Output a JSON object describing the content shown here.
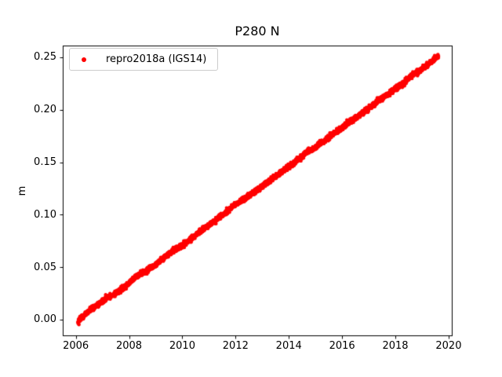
{
  "figure": {
    "background_color": "#ffffff"
  },
  "chart_data": {
    "type": "scatter",
    "title": "P280 N",
    "xlabel": "",
    "ylabel": "m",
    "grid": false,
    "axes": {
      "xlim": [
        2005.51,
        2020.12
      ],
      "ylim": [
        -0.01497,
        0.2612
      ],
      "xtick_values": [
        2006,
        2008,
        2010,
        2012,
        2014,
        2016,
        2018,
        2020
      ],
      "xtick_labels": [
        "2006",
        "2008",
        "2010",
        "2012",
        "2014",
        "2016",
        "2018",
        "2020"
      ],
      "ytick_values": [
        0.0,
        0.05,
        0.1,
        0.15,
        0.2,
        0.25
      ],
      "ytick_labels": [
        "0.00",
        "0.05",
        "0.10",
        "0.15",
        "0.20",
        "0.25"
      ],
      "spine_color": "#000000",
      "tick_color": "#000000"
    },
    "legend": {
      "position": "upper-left",
      "border_color": "#cccccc",
      "entries": [
        {
          "label": "repro2018a (IGS14)",
          "marker": "dot",
          "color": "#ff0000"
        }
      ]
    },
    "series": [
      {
        "name": "repro2018a (IGS14)",
        "color": "#ff0000",
        "marker": "dot",
        "marker_radius_px": 2.2,
        "x_start": 2006.08,
        "x_end": 2019.62,
        "points_per_year": 240,
        "noise_sigma_m": 0.0012,
        "rate_m_per_yr": 0.0185,
        "anchors": [
          [
            2006.08,
            -0.0016
          ],
          [
            2006.35,
            0.0049
          ],
          [
            2006.6,
            0.0105
          ],
          [
            2006.85,
            0.0141
          ],
          [
            2007.05,
            0.0186
          ],
          [
            2007.1,
            0.0203
          ],
          [
            2007.35,
            0.0234
          ],
          [
            2007.6,
            0.0265
          ],
          [
            2007.9,
            0.0321
          ],
          [
            2008.15,
            0.0387
          ],
          [
            2008.4,
            0.0433
          ],
          [
            2008.7,
            0.0474
          ],
          [
            2009.0,
            0.052
          ],
          [
            2009.3,
            0.0585
          ],
          [
            2009.6,
            0.0651
          ],
          [
            2009.9,
            0.0691
          ],
          [
            2010.2,
            0.0742
          ],
          [
            2010.5,
            0.0807
          ],
          [
            2010.8,
            0.0868
          ],
          [
            2011.1,
            0.0919
          ],
          [
            2011.4,
            0.0979
          ],
          [
            2011.7,
            0.103
          ],
          [
            2011.9,
            0.1087
          ],
          [
            2012.1,
            0.1114
          ],
          [
            2012.4,
            0.1159
          ],
          [
            2012.7,
            0.122
          ],
          [
            2013.0,
            0.1271
          ],
          [
            2013.3,
            0.1331
          ],
          [
            2013.6,
            0.1382
          ],
          [
            2013.9,
            0.1442
          ],
          [
            2014.2,
            0.1493
          ],
          [
            2014.5,
            0.1558
          ],
          [
            2014.75,
            0.161
          ],
          [
            2015.0,
            0.1641
          ],
          [
            2015.3,
            0.1697
          ],
          [
            2015.6,
            0.1757
          ],
          [
            2015.9,
            0.1808
          ],
          [
            2016.2,
            0.1874
          ],
          [
            2016.5,
            0.192
          ],
          [
            2016.8,
            0.198
          ],
          [
            2017.1,
            0.2031
          ],
          [
            2017.4,
            0.2096
          ],
          [
            2017.7,
            0.2141
          ],
          [
            2018.0,
            0.2202
          ],
          [
            2018.3,
            0.2252
          ],
          [
            2018.6,
            0.2322
          ],
          [
            2018.9,
            0.2369
          ],
          [
            2019.1,
            0.2411
          ],
          [
            2019.3,
            0.2443
          ],
          [
            2019.5,
            0.249
          ],
          [
            2019.62,
            0.2512
          ]
        ]
      }
    ]
  }
}
